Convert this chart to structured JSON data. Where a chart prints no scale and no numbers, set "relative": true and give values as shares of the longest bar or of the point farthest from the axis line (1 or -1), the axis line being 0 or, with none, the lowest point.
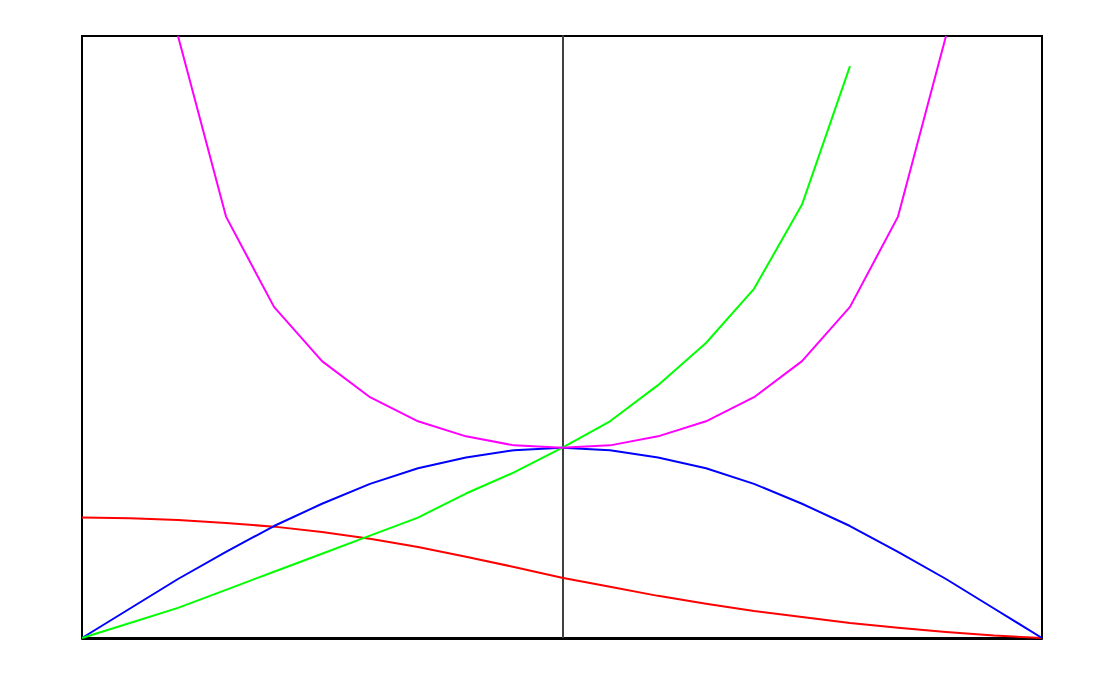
{
  "chart_data": {
    "type": "line",
    "relative": true,
    "grid": false,
    "tick_labels": false,
    "marker": "none",
    "line_style": "solid",
    "categories": [
      null,
      null,
      null,
      null,
      null,
      null,
      null,
      null,
      null,
      null,
      null,
      null,
      null,
      null,
      null,
      null,
      null,
      null,
      null,
      null,
      null
    ],
    "series": [
      {
        "color": "#ff0000",
        "values": [
          0.2,
          0.199,
          0.196,
          0.191,
          0.185,
          0.176,
          0.165,
          0.151,
          0.135,
          0.118,
          0.1,
          0.085,
          0.07,
          0.057,
          0.045,
          0.035,
          0.025,
          0.017,
          0.01,
          0.004,
          0
        ]
      },
      {
        "color": "#0000ff",
        "values": [
          0,
          0.049,
          0.098,
          0.143,
          0.186,
          0.223,
          0.256,
          0.282,
          0.3,
          0.312,
          0.316,
          0.312,
          0.3,
          0.282,
          0.256,
          0.223,
          0.186,
          0.143,
          0.098,
          0.049,
          0
        ]
      },
      {
        "color": "#00ff00",
        "values": [
          0,
          0.025,
          0.05,
          0.08,
          0.11,
          0.14,
          0.17,
          0.2,
          0.24,
          0.275,
          0.316,
          0.36,
          0.42,
          0.49,
          0.58,
          0.72,
          0.95,
          null,
          null,
          null,
          null
        ]
      },
      {
        "color": "#ff00ff",
        "values": [
          null,
          null,
          1,
          0.7,
          0.55,
          0.46,
          0.4,
          0.36,
          0.335,
          0.32,
          0.316,
          0.32,
          0.335,
          0.36,
          0.4,
          0.46,
          0.55,
          0.7,
          1,
          null,
          null
        ]
      }
    ]
  }
}
